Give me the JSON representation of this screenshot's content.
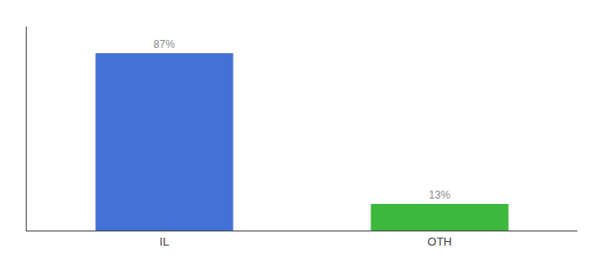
{
  "chart_data": {
    "type": "bar",
    "categories": [
      "IL",
      "OTH"
    ],
    "values": [
      87,
      13
    ],
    "value_labels": [
      "87%",
      "13%"
    ],
    "colors": [
      "#4472d4",
      "#3cb83c"
    ],
    "ylim": [
      0,
      100
    ],
    "grid": false,
    "tick_labels": "x",
    "data_labels": true
  }
}
